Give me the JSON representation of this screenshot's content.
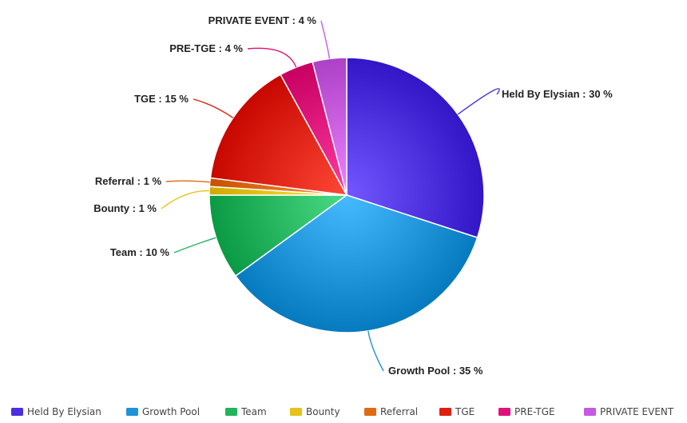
{
  "chart_data": {
    "type": "pie",
    "slices": [
      {
        "label": "Held By Elysian",
        "value": 30,
        "display": "Held By Elysian : 30 %",
        "color": "#4b2fe0"
      },
      {
        "label": "Growth Pool",
        "value": 35,
        "display": "Growth Pool : 35 %",
        "color": "#1f93d8"
      },
      {
        "label": "Team",
        "value": 10,
        "display": "Team : 10 %",
        "color": "#22b35c"
      },
      {
        "label": "Bounty",
        "value": 1,
        "display": "Bounty : 1 %",
        "color": "#e8c21a"
      },
      {
        "label": "Referral",
        "value": 1,
        "display": "Referral : 1 %",
        "color": "#e06a12"
      },
      {
        "label": "TGE",
        "value": 15,
        "display": "TGE : 15 %",
        "color": "#e0200e"
      },
      {
        "label": "PRE-TGE",
        "value": 4,
        "display": "PRE-TGE : 4 %",
        "color": "#e0127a"
      },
      {
        "label": "PRIVATE EVENT",
        "value": 4,
        "display": "PRIVATE EVENT : 4 %",
        "color": "#c65ae0"
      }
    ],
    "legend": {
      "position": "bottom",
      "entries": [
        "Held By Elysian",
        "Growth Pool",
        "Team",
        "Bounty",
        "Referral",
        "TGE",
        "PRE-TGE",
        "PRIVATE EVENT"
      ]
    }
  }
}
